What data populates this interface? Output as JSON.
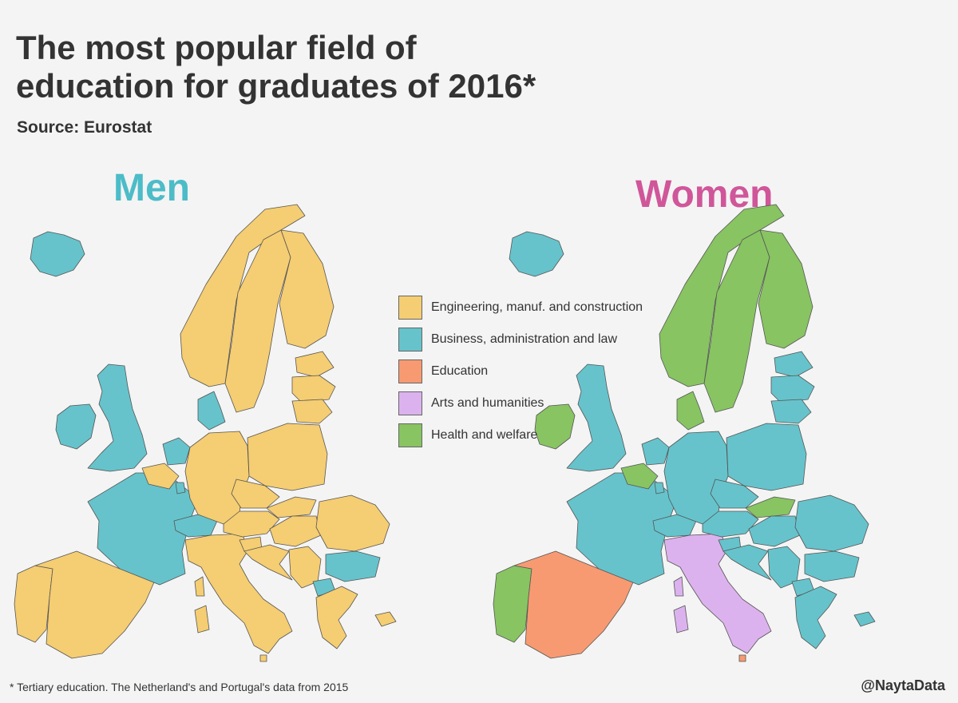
{
  "title": "The most popular field of education for graduates of 2016*",
  "source": "Source: Eurostat",
  "men_title": "Men",
  "women_title": "Women",
  "colors": {
    "men_title": "#4cbcc8",
    "women_title": "#d0569a",
    "engineering": "#f5cd72",
    "business": "#66c3cb",
    "education": "#f79a72",
    "arts": "#dcb2ee",
    "health": "#88c462"
  },
  "legend": [
    {
      "key": "engineering",
      "label": "Engineering, manuf. and construction"
    },
    {
      "key": "business",
      "label": "Business, administration and law"
    },
    {
      "key": "education",
      "label": "Education"
    },
    {
      "key": "arts",
      "label": "Arts and humanities"
    },
    {
      "key": "health",
      "label": "Health and welfare"
    }
  ],
  "map_data": {
    "men": {
      "iceland": "business",
      "ireland": "business",
      "uk": "business",
      "portugal": "engineering",
      "spain": "engineering",
      "france": "business",
      "belgium": "engineering",
      "netherlands": "business",
      "luxembourg": "business",
      "switzerland": "business",
      "italy": "engineering",
      "malta": "engineering",
      "germany": "engineering",
      "denmark": "business",
      "norway": "engineering",
      "sweden": "engineering",
      "finland": "engineering",
      "estonia": "engineering",
      "latvia": "engineering",
      "lithuania": "engineering",
      "poland": "engineering",
      "czechia": "engineering",
      "slovakia": "engineering",
      "austria": "engineering",
      "hungary": "engineering",
      "slovenia": "engineering",
      "croatia": "engineering",
      "serbia": "engineering",
      "romania": "engineering",
      "bulgaria": "business",
      "north_macedonia": "business",
      "greece": "engineering",
      "cyprus": "engineering",
      "corsica_sardinia": "engineering"
    },
    "women": {
      "iceland": "business",
      "ireland": "health",
      "uk": "business",
      "portugal": "health",
      "spain": "education",
      "france": "business",
      "belgium": "health",
      "netherlands": "business",
      "luxembourg": "business",
      "switzerland": "business",
      "italy": "arts",
      "malta": "education",
      "germany": "business",
      "denmark": "health",
      "norway": "health",
      "sweden": "health",
      "finland": "health",
      "estonia": "business",
      "latvia": "business",
      "lithuania": "business",
      "poland": "business",
      "czechia": "business",
      "slovakia": "health",
      "austria": "business",
      "hungary": "business",
      "slovenia": "business",
      "croatia": "business",
      "serbia": "business",
      "romania": "business",
      "bulgaria": "business",
      "north_macedonia": "business",
      "greece": "business",
      "cyprus": "business",
      "corsica_sardinia": "arts"
    }
  },
  "footnote": "* Tertiary education. The Netherland's and Portugal's data from 2015",
  "credit": "@NaytaData"
}
